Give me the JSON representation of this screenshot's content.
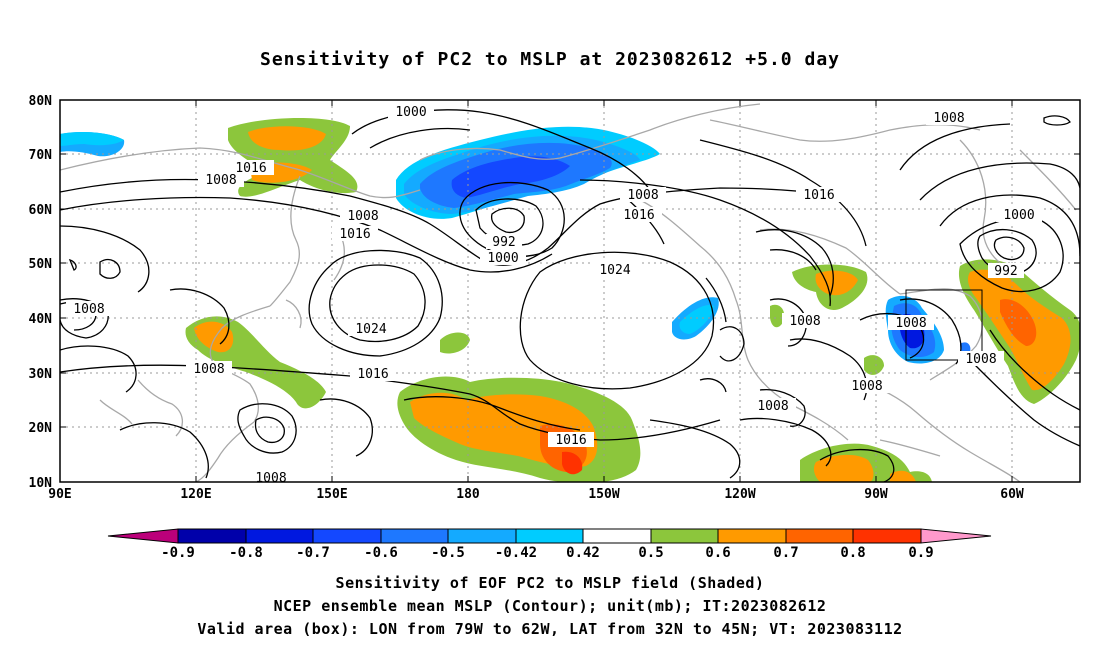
{
  "title": "Sensitivity of PC2 to MSLP at 2023082612 +5.0 day",
  "map": {
    "lat_labels": [
      "80N",
      "70N",
      "60N",
      "50N",
      "40N",
      "30N",
      "20N",
      "10N"
    ],
    "lon_labels": [
      "90E",
      "120E",
      "150E",
      "180",
      "150W",
      "120W",
      "90W",
      "60W"
    ],
    "contour_labels": [
      {
        "text": "1000"
      },
      {
        "text": "1016"
      },
      {
        "text": "1008"
      },
      {
        "text": "1008"
      },
      {
        "text": "1016"
      },
      {
        "text": "992"
      },
      {
        "text": "1000"
      },
      {
        "text": "1008"
      },
      {
        "text": "1016"
      },
      {
        "text": "1024"
      },
      {
        "text": "1024"
      },
      {
        "text": "1008"
      },
      {
        "text": "1008"
      },
      {
        "text": "1016"
      },
      {
        "text": "1016"
      },
      {
        "text": "1008"
      },
      {
        "text": "1008"
      },
      {
        "text": "1008"
      },
      {
        "text": "1016"
      },
      {
        "text": "1008"
      },
      {
        "text": "1008"
      },
      {
        "text": "1008"
      },
      {
        "text": "1000"
      },
      {
        "text": "992"
      },
      {
        "text": "1008"
      }
    ]
  },
  "colorbar": {
    "labels": [
      "-0.9",
      "-0.8",
      "-0.7",
      "-0.6",
      "-0.5",
      "-0.42",
      "0.42",
      "0.5",
      "0.6",
      "0.7",
      "0.8",
      "0.9"
    ],
    "colors": [
      "#bb007a",
      "#0000aa",
      "#0018e0",
      "#1448ff",
      "#1e78ff",
      "#14aaff",
      "#00ccff",
      "#ffffff",
      "#8cc63c",
      "#ff9a00",
      "#ff6400",
      "#ff3200",
      "#ff0000",
      "#ff99cc"
    ]
  },
  "footer": {
    "line1": "Sensitivity of EOF PC2 to MSLP field (Shaded)",
    "line2": "NCEP ensemble mean MSLP (Contour); unit(mb); IT:2023082612",
    "line3": "Valid area (box): LON from 79W to 62W, LAT from 32N to 45N; VT: 2023083112"
  }
}
